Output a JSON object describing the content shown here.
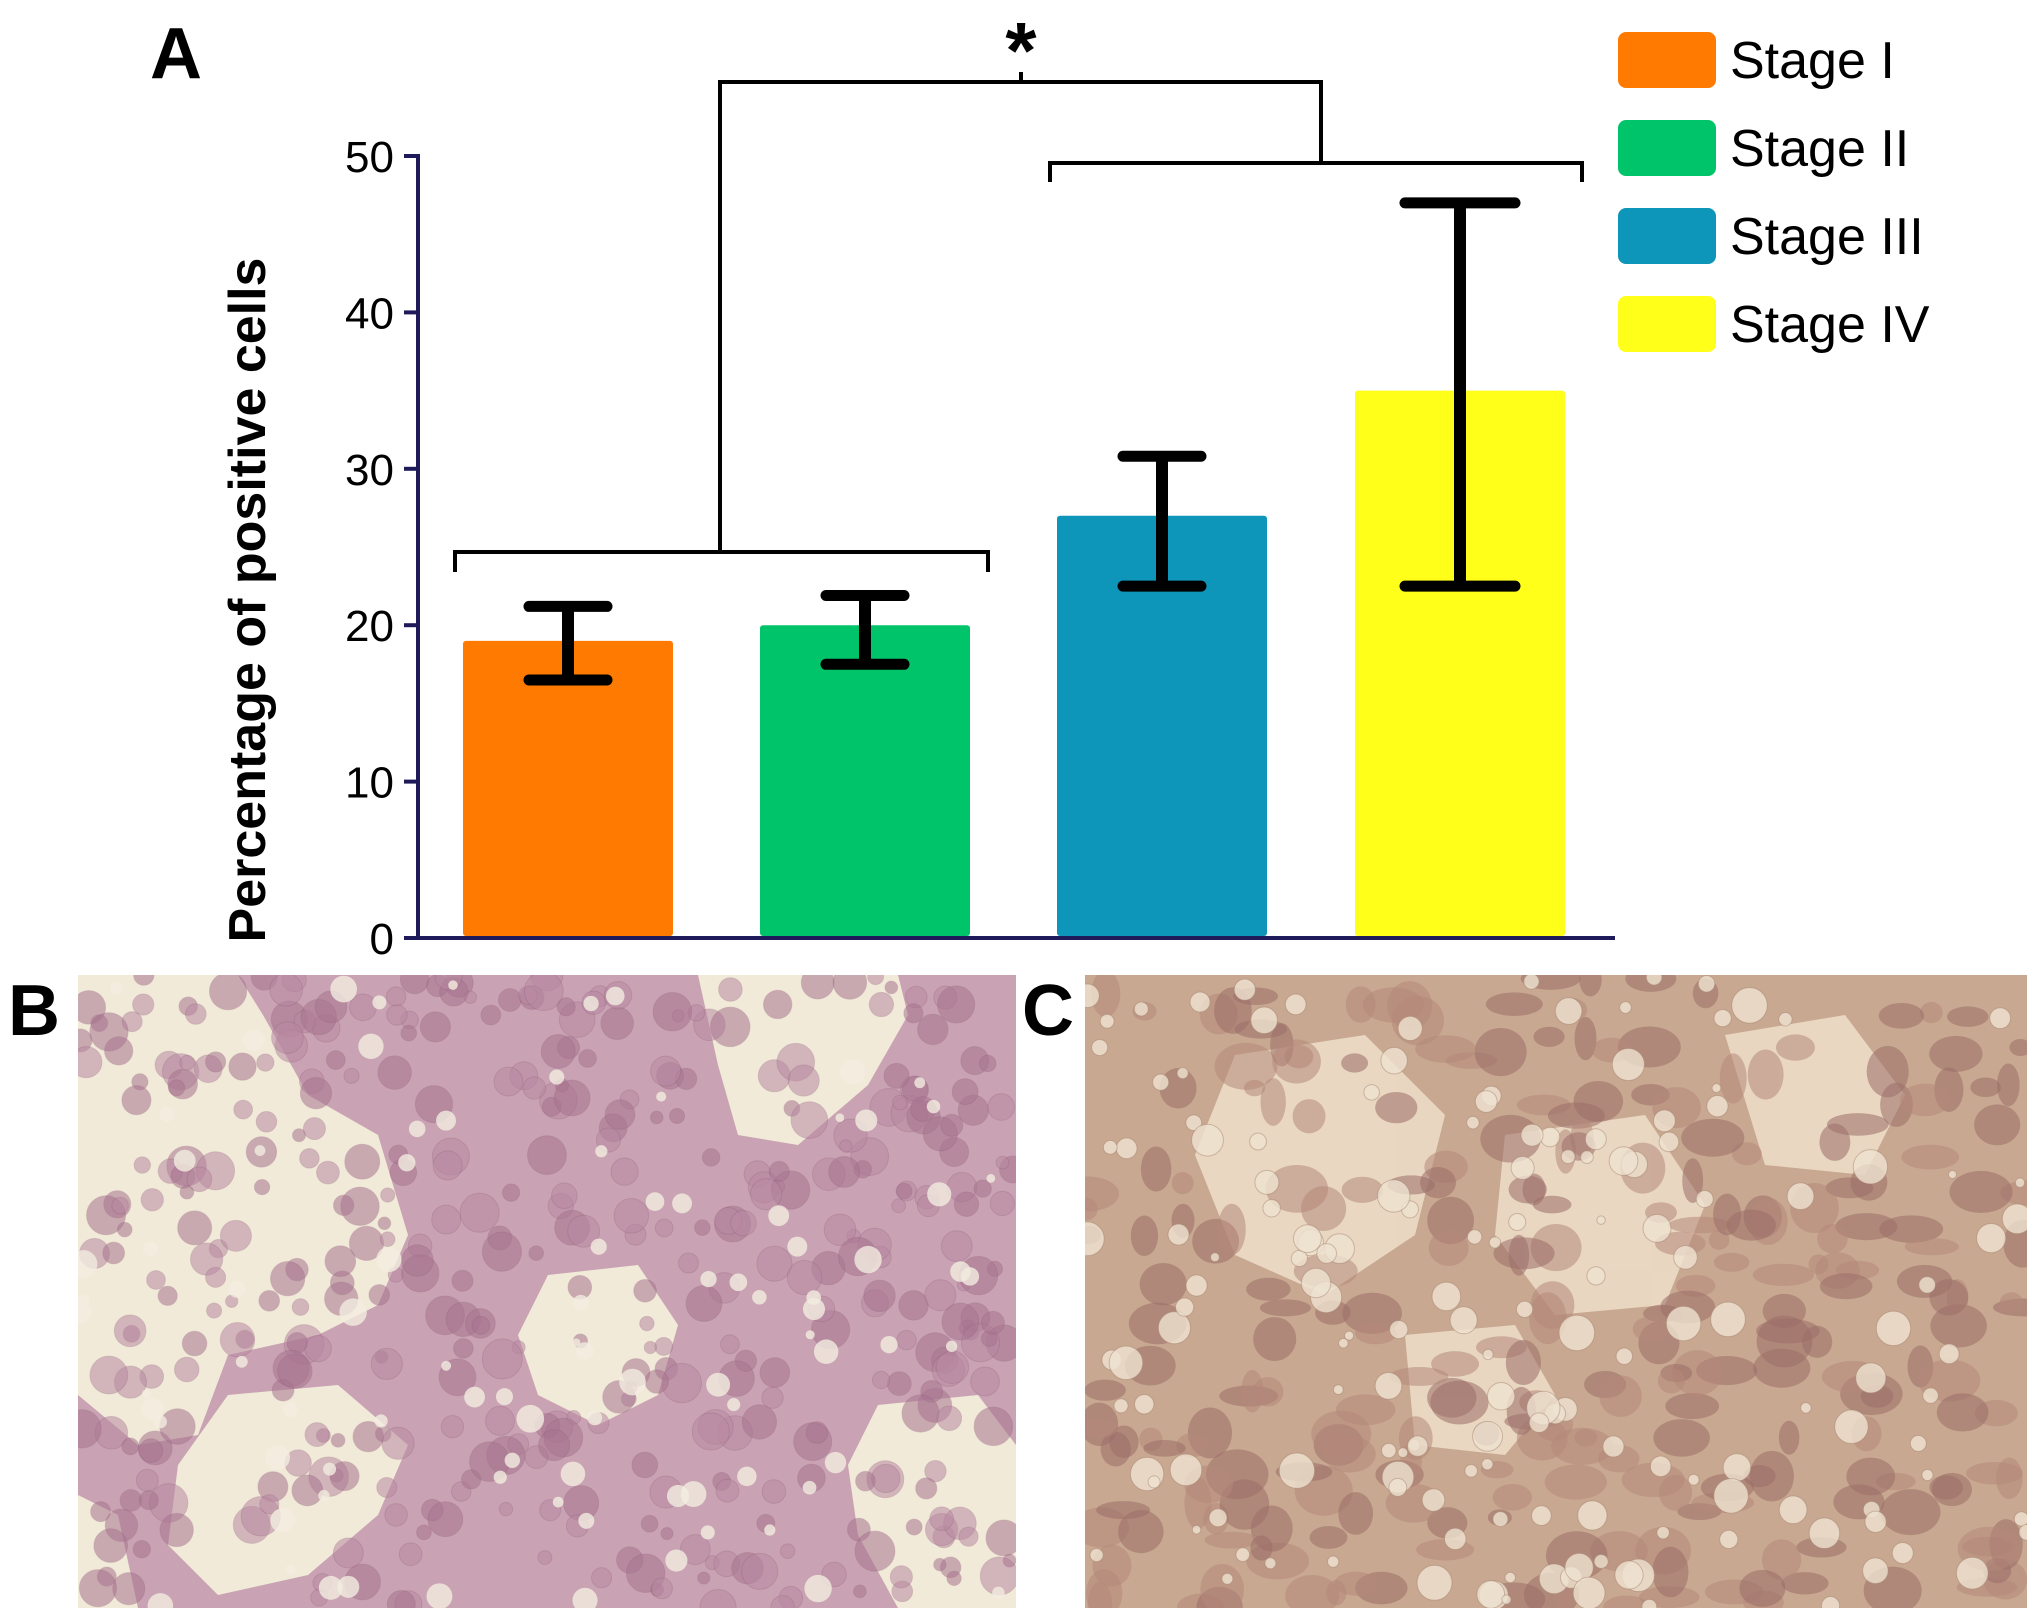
{
  "panels": {
    "a": "A",
    "b": "B",
    "c": "C"
  },
  "chart_data": {
    "type": "bar",
    "title": "",
    "xlabel": "",
    "ylabel": "Percentage of positive cells",
    "ylim": [
      0,
      50
    ],
    "yticks": [
      "0",
      "10",
      "20",
      "30",
      "40",
      "50"
    ],
    "categories": [
      "Stage I",
      "Stage II",
      "Stage III",
      "Stage IV"
    ],
    "values": [
      19,
      20,
      27,
      35
    ],
    "error_low": [
      16.5,
      17.5,
      22.5,
      22.5
    ],
    "error_high": [
      21.2,
      21.9,
      30.8,
      47
    ],
    "colors": [
      "#ff7a00",
      "#00c46a",
      "#0d96b9",
      "#ffff1a"
    ],
    "legend": {
      "position": "top-right",
      "entries": [
        "Stage I",
        "Stage II",
        "Stage III",
        "Stage IV"
      ]
    },
    "grid": false,
    "annotations": [
      {
        "text": "*",
        "compares": [
          "Stage I + Stage II",
          "Stage III + Stage IV"
        ]
      }
    ]
  }
}
